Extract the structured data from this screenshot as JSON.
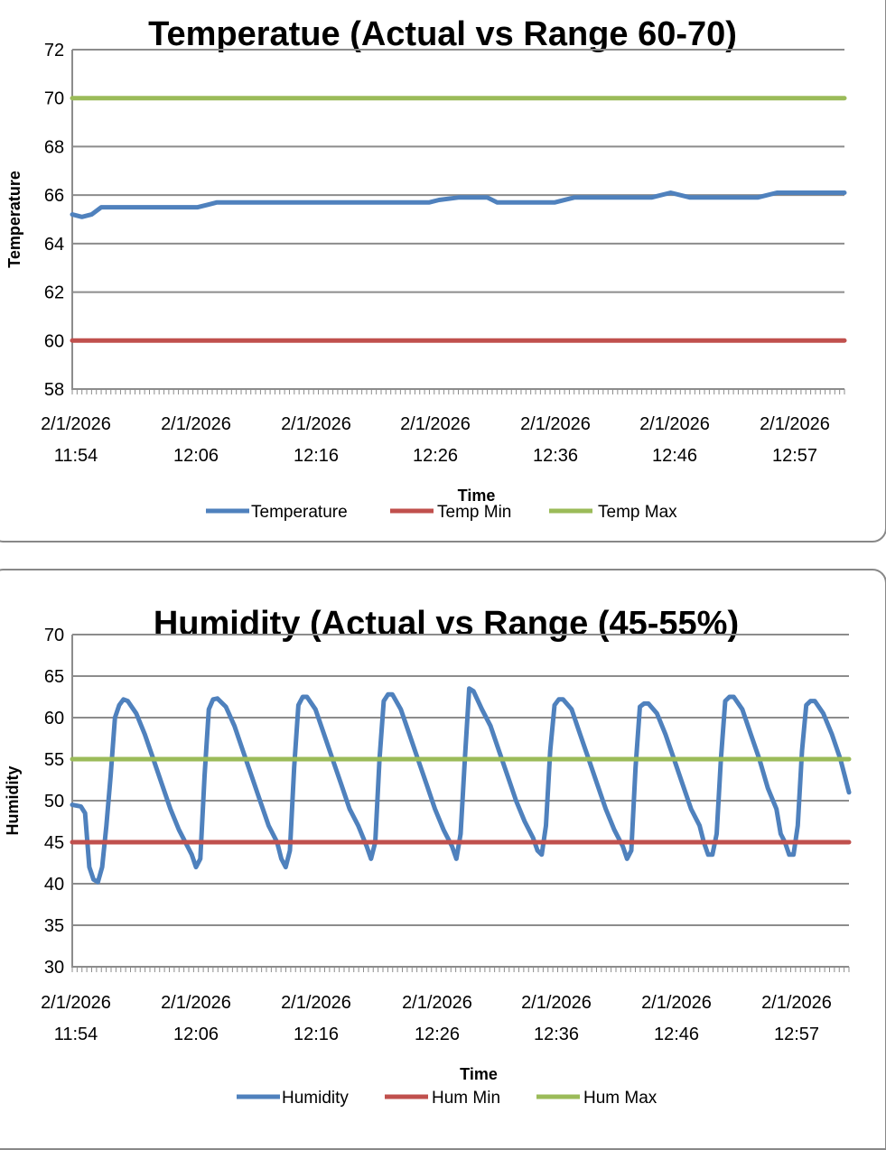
{
  "chart_data": [
    {
      "type": "line",
      "title": "Temperatue (Actual vs Range 60-70)",
      "xlabel": "Time",
      "ylabel": "Temperature",
      "ylim": [
        58,
        72
      ],
      "yticks": [
        58,
        60,
        62,
        64,
        66,
        68,
        70,
        72
      ],
      "grid": true,
      "legend": "bottom",
      "x_tick_labels": [
        [
          "2/1/2026",
          "11:54"
        ],
        [
          "2/1/2026",
          "12:06"
        ],
        [
          "2/1/2026",
          "12:16"
        ],
        [
          "2/1/2026",
          "12:26"
        ],
        [
          "2/1/2026",
          "12:36"
        ],
        [
          "2/1/2026",
          "12:46"
        ],
        [
          "2/1/2026",
          "12:57"
        ]
      ],
      "n_points": 160,
      "series": [
        {
          "name": "Temperature",
          "color": "#4f81bd",
          "points": [
            [
              0,
              65.2
            ],
            [
              2,
              65.1
            ],
            [
              4,
              65.2
            ],
            [
              6,
              65.5
            ],
            [
              15,
              65.5
            ],
            [
              26,
              65.5
            ],
            [
              28,
              65.6
            ],
            [
              30,
              65.7
            ],
            [
              70,
              65.7
            ],
            [
              74,
              65.7
            ],
            [
              76,
              65.8
            ],
            [
              80,
              65.9
            ],
            [
              86,
              65.9
            ],
            [
              88,
              65.7
            ],
            [
              96,
              65.7
            ],
            [
              100,
              65.7
            ],
            [
              104,
              65.9
            ],
            [
              108,
              65.9
            ],
            [
              112,
              65.9
            ],
            [
              120,
              65.9
            ],
            [
              124,
              66.1
            ],
            [
              128,
              65.9
            ],
            [
              134,
              65.9
            ],
            [
              142,
              65.9
            ],
            [
              146,
              66.1
            ],
            [
              154,
              66.1
            ],
            [
              160,
              66.1
            ]
          ]
        },
        {
          "name": "Temp Min",
          "color": "#c0504d",
          "values": [
            60,
            60
          ]
        },
        {
          "name": "Temp Max",
          "color": "#9bbb59",
          "values": [
            70,
            70
          ]
        }
      ]
    },
    {
      "type": "line",
      "title": "Humidity (Actual vs Range (45-55%)",
      "xlabel": "Time",
      "ylabel": "Humidity",
      "ylim": [
        30,
        70
      ],
      "yticks": [
        30,
        35,
        40,
        45,
        50,
        55,
        60,
        65,
        70
      ],
      "grid": true,
      "legend": "bottom",
      "x_tick_labels": [
        [
          "2/1/2026",
          "11:54"
        ],
        [
          "2/1/2026",
          "12:06"
        ],
        [
          "2/1/2026",
          "12:16"
        ],
        [
          "2/1/2026",
          "12:26"
        ],
        [
          "2/1/2026",
          "12:36"
        ],
        [
          "2/1/2026",
          "12:46"
        ],
        [
          "2/1/2026",
          "12:57"
        ]
      ],
      "n_points": 160,
      "series": [
        {
          "name": "Humidity",
          "color": "#4f81bd",
          "points": [
            [
              0,
              49.5
            ],
            [
              2,
              49.3
            ],
            [
              3,
              48.5
            ],
            [
              4,
              42
            ],
            [
              5,
              40.5
            ],
            [
              6,
              40.2
            ],
            [
              7,
              42
            ],
            [
              8,
              47
            ],
            [
              9,
              53
            ],
            [
              10,
              60
            ],
            [
              11,
              61.5
            ],
            [
              12,
              62.2
            ],
            [
              13,
              62
            ],
            [
              15,
              60.5
            ],
            [
              17,
              58
            ],
            [
              19,
              55
            ],
            [
              21,
              52
            ],
            [
              23,
              49
            ],
            [
              25,
              46.5
            ],
            [
              27,
              44.5
            ],
            [
              28,
              43.5
            ],
            [
              29,
              42
            ],
            [
              30,
              43
            ],
            [
              31,
              53
            ],
            [
              32,
              61
            ],
            [
              33,
              62.2
            ],
            [
              34,
              62.3
            ],
            [
              36,
              61.3
            ],
            [
              38,
              59
            ],
            [
              40,
              56
            ],
            [
              42,
              53
            ],
            [
              44,
              50
            ],
            [
              46,
              47
            ],
            [
              48,
              45
            ],
            [
              49,
              43
            ],
            [
              50,
              42
            ],
            [
              51,
              44
            ],
            [
              52,
              54
            ],
            [
              53,
              61.5
            ],
            [
              54,
              62.5
            ],
            [
              55,
              62.5
            ],
            [
              57,
              61
            ],
            [
              59,
              58
            ],
            [
              61,
              55
            ],
            [
              63,
              52
            ],
            [
              65,
              49
            ],
            [
              67,
              47
            ],
            [
              69,
              44.5
            ],
            [
              70,
              43
            ],
            [
              71,
              45
            ],
            [
              72,
              55
            ],
            [
              73,
              62
            ],
            [
              74,
              62.8
            ],
            [
              75,
              62.8
            ],
            [
              77,
              61
            ],
            [
              79,
              58
            ],
            [
              81,
              55
            ],
            [
              83,
              52
            ],
            [
              85,
              49
            ],
            [
              87,
              46.5
            ],
            [
              89,
              44.5
            ],
            [
              90,
              43
            ],
            [
              91,
              46
            ],
            [
              92,
              55
            ],
            [
              93,
              63.5
            ],
            [
              94,
              63.2
            ],
            [
              96,
              61
            ],
            [
              98,
              59
            ],
            [
              100,
              56
            ],
            [
              102,
              53
            ],
            [
              104,
              50
            ],
            [
              106,
              47.5
            ],
            [
              108,
              45.5
            ],
            [
              109,
              44
            ],
            [
              110,
              43.5
            ],
            [
              111,
              47
            ],
            [
              112,
              56
            ],
            [
              113,
              61.5
            ],
            [
              114,
              62.2
            ],
            [
              115,
              62.2
            ],
            [
              117,
              61
            ],
            [
              119,
              58
            ],
            [
              121,
              55
            ],
            [
              123,
              52
            ],
            [
              125,
              49
            ],
            [
              127,
              46.5
            ],
            [
              129,
              44.5
            ],
            [
              130,
              43
            ],
            [
              131,
              44
            ],
            [
              132,
              54
            ],
            [
              133,
              61.3
            ],
            [
              134,
              61.7
            ],
            [
              135,
              61.7
            ],
            [
              137,
              60.5
            ],
            [
              139,
              58
            ],
            [
              141,
              55
            ],
            [
              143,
              52
            ],
            [
              145,
              49
            ],
            [
              147,
              47
            ],
            [
              148,
              45
            ],
            [
              149,
              43.5
            ],
            [
              150,
              43.5
            ],
            [
              151,
              46
            ],
            [
              152,
              55
            ],
            [
              153,
              62
            ],
            [
              154,
              62.5
            ],
            [
              155,
              62.5
            ],
            [
              157,
              61
            ],
            [
              159,
              58
            ],
            [
              161,
              55
            ],
            [
              163,
              51.5
            ],
            [
              165,
              49
            ],
            [
              166,
              46
            ],
            [
              167,
              45
            ],
            [
              168,
              43.5
            ],
            [
              169,
              43.5
            ],
            [
              170,
              47
            ],
            [
              171,
              56
            ],
            [
              172,
              61.5
            ],
            [
              173,
              62
            ],
            [
              174,
              62
            ],
            [
              176,
              60.5
            ],
            [
              178,
              58
            ],
            [
              180,
              55
            ],
            [
              181,
              53
            ],
            [
              182,
              51
            ]
          ]
        },
        {
          "name": "Hum Min",
          "color": "#c0504d",
          "values": [
            45,
            45
          ]
        },
        {
          "name": "Hum Max",
          "color": "#9bbb59",
          "values": [
            55,
            55
          ]
        }
      ]
    }
  ]
}
